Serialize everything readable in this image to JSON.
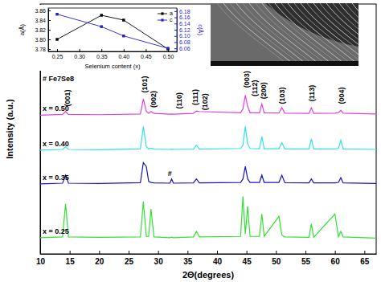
{
  "chart_data": [
    {
      "type": "line",
      "x_label": "2Θ(degrees)",
      "y_label": "Intensity (a.u.)",
      "x": [
        10,
        13.8,
        14.3,
        14.8,
        20,
        27.0,
        27.5,
        28.0,
        28.4,
        28.8,
        29.3,
        32,
        32.3,
        32.6,
        36,
        36.5,
        37,
        44.0,
        44.4,
        44.8,
        45.2,
        45.6,
        47.2,
        47.6,
        48.0,
        50.5,
        51.0,
        51.5,
        55.6,
        56.0,
        56.4,
        60.0,
        60.6,
        61.0,
        61.4,
        67
      ],
      "xlim": [
        10,
        67
      ],
      "xticks": [
        10,
        15,
        20,
        25,
        30,
        35,
        40,
        45,
        50,
        55,
        60,
        65
      ],
      "ylim": [
        0,
        100
      ],
      "tick_labels": "x",
      "series": [
        {
          "name": "x = 0.50",
          "color": "#e23ee2",
          "values": [
            55.5,
            55.8,
            57,
            55.8,
            55.7,
            56,
            62,
            57,
            56.3,
            57,
            56.2,
            55.9,
            56,
            55.9,
            56.2,
            57.2,
            57,
            56.5,
            58,
            63.5,
            59,
            56.5,
            56.5,
            60,
            56.5,
            56.4,
            58.5,
            56.3,
            56.2,
            58.5,
            56.2,
            56.3,
            56.5,
            57.5,
            56.3,
            56
          ]
        },
        {
          "name": "x = 0.40",
          "color": "#33e0e6",
          "values": [
            41.5,
            41.8,
            42.8,
            41.8,
            41.7,
            42,
            51,
            43,
            42,
            42.3,
            41.9,
            41.8,
            41.9,
            41.8,
            41.9,
            43.5,
            41.9,
            42.2,
            43.5,
            51,
            44,
            42.2,
            42.1,
            47,
            42.1,
            42.1,
            44.5,
            42,
            42,
            46,
            42,
            42,
            42.2,
            45.5,
            42,
            41.8
          ]
        },
        {
          "name": "x = 0.35",
          "color": "#1515c8",
          "values": [
            28,
            28.3,
            31.5,
            28.3,
            28.2,
            28.5,
            36.5,
            35,
            29,
            28.6,
            28.4,
            28.3,
            30,
            28.3,
            28.4,
            30,
            28.4,
            28.6,
            30,
            35,
            30,
            28.6,
            28.6,
            31.5,
            28.6,
            28.6,
            31.5,
            28.5,
            28.4,
            30,
            28.4,
            28.4,
            28.6,
            30.5,
            28.4,
            28.2
          ]
        },
        {
          "name": "x = 0.25",
          "color": "#33e033",
          "values": [
            6.5,
            6.8,
            20,
            6.8,
            6.6,
            6.8,
            21,
            7,
            7,
            18,
            6.8,
            6.5,
            6.7,
            6.5,
            6.8,
            9,
            6.8,
            7,
            23,
            8,
            19,
            7,
            7,
            16,
            7,
            15,
            7.5,
            6.8,
            6.6,
            12,
            6.6,
            16,
            6.8,
            9,
            6.8,
            6.3
          ]
        }
      ],
      "annotations": [
        {
          "text": "(001)",
          "x": 14.6,
          "y": 59
        },
        {
          "text": "(101)",
          "x": 27.7,
          "y": 64.5
        },
        {
          "text": "(002)",
          "x": 29.2,
          "y": 58.5
        },
        {
          "text": "(110)",
          "x": 33.6,
          "y": 58
        },
        {
          "text": "(111)",
          "x": 36.3,
          "y": 59.5
        },
        {
          "text": "(102)",
          "x": 38.0,
          "y": 57.5
        },
        {
          "text": "(003)",
          "x": 45.0,
          "y": 66.5
        },
        {
          "text": "(112)",
          "x": 46.4,
          "y": 63
        },
        {
          "text": "(200)",
          "x": 47.9,
          "y": 62
        },
        {
          "text": "(103)",
          "x": 51.1,
          "y": 60
        },
        {
          "text": "(113)",
          "x": 56.1,
          "y": 61
        },
        {
          "text": "(004)",
          "x": 61.1,
          "y": 60
        },
        {
          "text": "#",
          "x": 32.0,
          "y": 31.8
        },
        {
          "text": "# Fe7Se8",
          "x": 10.4,
          "y": 70
        }
      ]
    },
    {
      "type": "line",
      "x_label": "Selenium content (x)",
      "y_label": "a(Å)",
      "y2_label": "c(Å)",
      "x": [
        0.25,
        0.35,
        0.4,
        0.5
      ],
      "xlim": [
        0.23,
        0.52
      ],
      "xticks": [
        0.25,
        {
          "value": 0.3,
          "label": "0.30"
        },
        0.35,
        {
          "value": 0.4,
          "label": "0.40"
        },
        0.45,
        {
          "value": 0.5,
          "label": "0.50"
        }
      ],
      "ylim": [
        3.775,
        3.865
      ],
      "yticks": [
        3.78,
        {
          "value": 3.8,
          "label": "3.80"
        },
        3.82,
        3.84,
        3.86
      ],
      "y2lim": [
        6.05,
        6.19
      ],
      "y2ticks": [
        6.06,
        6.08,
        {
          "value": 6.1,
          "label": "6.10"
        },
        6.12,
        6.14,
        6.16,
        6.18
      ],
      "legend": "upper right",
      "series": [
        {
          "name": "a",
          "color": "#000000",
          "marker": "square",
          "values": [
            3.8,
            3.85,
            3.84,
            3.78
          ]
        },
        {
          "name": "c",
          "color": "#1f1fd0",
          "marker": "square",
          "axis": "y2",
          "values": [
            6.17,
            6.13,
            6.1,
            6.06
          ]
        }
      ]
    }
  ]
}
